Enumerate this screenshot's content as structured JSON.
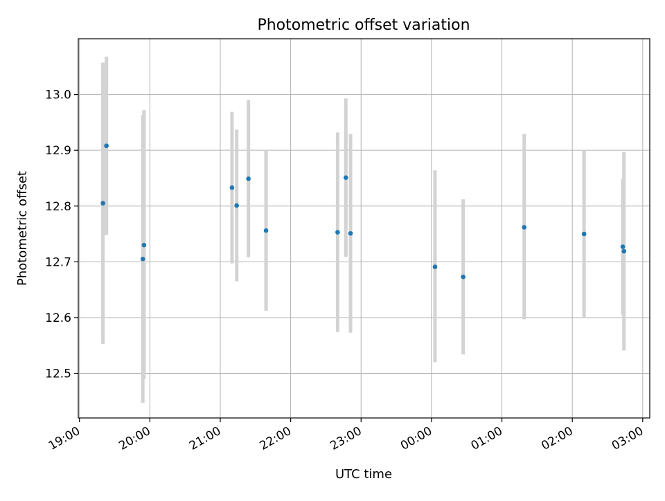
{
  "chart_data": {
    "type": "scatter",
    "title": "Photometric offset variation",
    "xlabel": "UTC time",
    "ylabel": "Photometric offset",
    "x_unit": "UTC",
    "x_tick_labels": [
      "19:00",
      "20:00",
      "21:00",
      "22:00",
      "23:00",
      "00:00",
      "01:00",
      "02:00",
      "03:00"
    ],
    "y_tick_labels": [
      "12.5",
      "12.6",
      "12.7",
      "12.8",
      "12.9",
      "13.0"
    ],
    "xlim": [
      "19:00",
      "03:06"
    ],
    "ylim": [
      12.42,
      13.1
    ],
    "grid": true,
    "legend": false,
    "colors": {
      "point": "#1f77b4",
      "errorbar": "#d3d3d3",
      "grid": "#b0b0b0"
    },
    "series": [
      {
        "points": [
          {
            "x": "19:20",
            "y": 12.805,
            "ylow": 12.553,
            "yhigh": 13.057
          },
          {
            "x": "19:23",
            "y": 12.908,
            "ylow": 12.748,
            "yhigh": 13.068
          },
          {
            "x": "19:54",
            "y": 12.705,
            "ylow": 12.447,
            "yhigh": 12.963
          },
          {
            "x": "19:55",
            "y": 12.73,
            "ylow": 12.49,
            "yhigh": 12.972
          },
          {
            "x": "21:10",
            "y": 12.833,
            "ylow": 12.697,
            "yhigh": 12.969
          },
          {
            "x": "21:14",
            "y": 12.801,
            "ylow": 12.665,
            "yhigh": 12.937
          },
          {
            "x": "21:24",
            "y": 12.849,
            "ylow": 12.708,
            "yhigh": 12.99
          },
          {
            "x": "21:39",
            "y": 12.756,
            "ylow": 12.612,
            "yhigh": 12.9
          },
          {
            "x": "22:40",
            "y": 12.753,
            "ylow": 12.574,
            "yhigh": 12.932
          },
          {
            "x": "22:47",
            "y": 12.851,
            "ylow": 12.709,
            "yhigh": 12.993
          },
          {
            "x": "22:51",
            "y": 12.751,
            "ylow": 12.573,
            "yhigh": 12.929
          },
          {
            "x": "00:03",
            "y": 12.691,
            "ylow": 12.52,
            "yhigh": 12.864
          },
          {
            "x": "00:27",
            "y": 12.673,
            "ylow": 12.534,
            "yhigh": 12.812
          },
          {
            "x": "01:19",
            "y": 12.762,
            "ylow": 12.597,
            "yhigh": 12.929
          },
          {
            "x": "02:10",
            "y": 12.75,
            "ylow": 12.6,
            "yhigh": 12.9
          },
          {
            "x": "02:43",
            "y": 12.727,
            "ylow": 12.605,
            "yhigh": 12.849
          },
          {
            "x": "02:44",
            "y": 12.719,
            "ylow": 12.541,
            "yhigh": 12.897
          }
        ]
      }
    ]
  }
}
